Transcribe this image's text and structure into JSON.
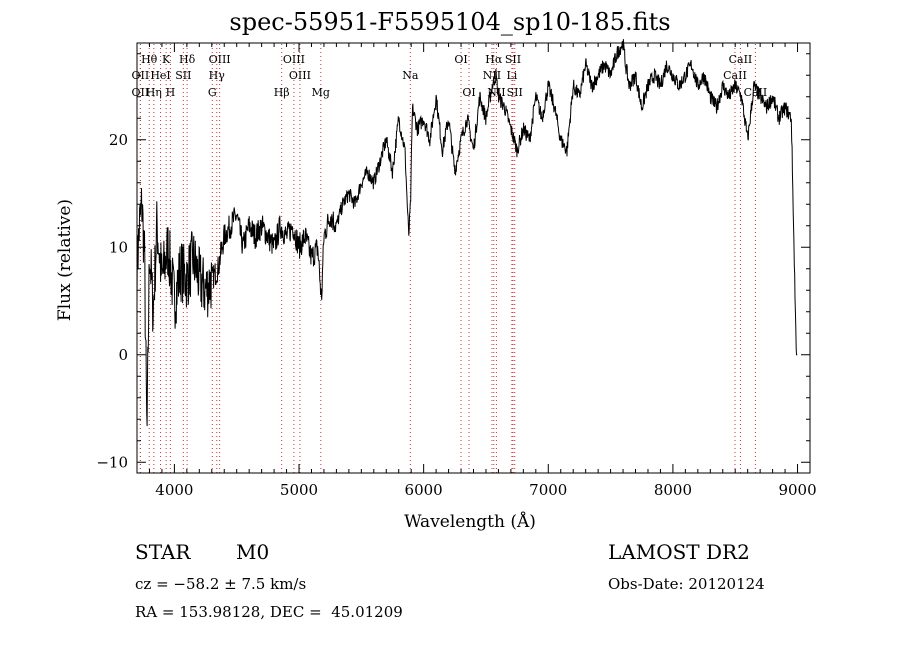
{
  "header": {
    "title": "spec-55951-F5595104_sp10-185.fits"
  },
  "info": {
    "star_label": "STAR",
    "subclass": "M0",
    "survey": "LAMOST DR2",
    "cz": "cz = −58.2 ± 7.5 km/s",
    "obs_date": "Obs-Date: 20120124",
    "radec": "RA = 153.98128, DEC =  45.01209"
  },
  "chart_data": {
    "type": "line",
    "title": "spec-55951-F5595104_sp10-185.fits",
    "xlabel": "Wavelength (Å)",
    "ylabel": "Flux (relative)",
    "xlim": [
      3700,
      9100
    ],
    "ylim": [
      -11,
      29
    ],
    "x_ticks": [
      4000,
      5000,
      6000,
      7000,
      8000,
      9000
    ],
    "y_ticks": [
      -10,
      0,
      10,
      20
    ],
    "grid": false,
    "line_color": "#000000",
    "marker_color": "#cc3333",
    "spectrum": {
      "name": "",
      "x": [
        3700,
        3720,
        3740,
        3760,
        3780,
        3800,
        3830,
        3860,
        3900,
        3950,
        4000,
        4050,
        4100,
        4150,
        4200,
        4250,
        4300,
        4350,
        4400,
        4450,
        4500,
        4550,
        4600,
        4650,
        4700,
        4750,
        4800,
        4850,
        4900,
        4950,
        5000,
        5050,
        5100,
        5150,
        5180,
        5200,
        5250,
        5300,
        5350,
        5400,
        5450,
        5500,
        5550,
        5600,
        5650,
        5700,
        5750,
        5800,
        5850,
        5880,
        5895,
        5910,
        5950,
        6000,
        6050,
        6100,
        6150,
        6200,
        6250,
        6300,
        6350,
        6400,
        6450,
        6500,
        6550,
        6580,
        6600,
        6650,
        6700,
        6750,
        6800,
        6850,
        6900,
        6950,
        7000,
        7050,
        7100,
        7150,
        7200,
        7250,
        7300,
        7350,
        7400,
        7450,
        7500,
        7550,
        7600,
        7620,
        7650,
        7700,
        7750,
        7800,
        7850,
        7900,
        7950,
        8000,
        8050,
        8100,
        8150,
        8200,
        8250,
        8300,
        8350,
        8400,
        8450,
        8500,
        8550,
        8600,
        8650,
        8700,
        8750,
        8800,
        8850,
        8900,
        8950,
        8990,
        9000
      ],
      "y": [
        8,
        12,
        14,
        9,
        -8,
        10,
        4,
        12,
        7,
        10,
        5,
        8,
        7,
        9,
        7,
        6,
        7,
        8,
        11,
        12,
        13,
        10,
        12,
        11,
        12,
        11,
        10,
        12,
        11,
        12,
        10,
        11,
        9,
        10,
        5,
        11,
        13,
        12,
        14,
        15,
        14,
        16,
        17,
        16,
        18,
        20,
        17,
        22,
        19,
        11,
        14,
        23,
        21,
        22,
        20,
        24,
        19,
        22,
        17,
        20,
        22,
        19,
        24,
        22,
        25,
        26,
        24,
        23,
        21,
        19,
        21,
        20,
        24,
        22,
        25,
        23,
        20,
        19,
        25,
        24,
        27,
        25,
        26,
        27,
        26,
        28,
        29,
        27,
        25,
        26,
        23,
        25,
        26,
        25,
        27,
        26,
        25,
        26,
        27,
        25,
        26,
        24,
        23,
        25,
        24,
        25,
        24,
        20,
        25,
        24,
        23,
        24,
        22,
        23,
        22,
        0,
        0
      ]
    },
    "line_markers": [
      {
        "label": "Hθ",
        "x": 3798,
        "row": 1
      },
      {
        "label": "K",
        "x": 3934,
        "row": 1
      },
      {
        "label": "Hδ",
        "x": 4102,
        "row": 1
      },
      {
        "label": "OIII",
        "x": 4363,
        "row": 1
      },
      {
        "label": "OIII",
        "x": 4959,
        "row": 1
      },
      {
        "label": "OI",
        "x": 6300,
        "row": 1
      },
      {
        "label": "Hα",
        "x": 6563,
        "row": 1
      },
      {
        "label": "SII",
        "x": 6717,
        "row": 1
      },
      {
        "label": "CaII",
        "x": 8542,
        "row": 1
      },
      {
        "label": "OII",
        "x": 3727,
        "row": 2
      },
      {
        "label": "HeI",
        "x": 3889,
        "row": 2
      },
      {
        "label": "SII",
        "x": 4072,
        "row": 2
      },
      {
        "label": "Hγ",
        "x": 4340,
        "row": 2
      },
      {
        "label": "OIII",
        "x": 5007,
        "row": 2
      },
      {
        "label": "Na",
        "x": 5893,
        "row": 2
      },
      {
        "label": "NII",
        "x": 6548,
        "row": 2
      },
      {
        "label": "Li",
        "x": 6708,
        "row": 2
      },
      {
        "label": "CaII",
        "x": 8498,
        "row": 2
      },
      {
        "label": "OII",
        "x": 3727,
        "row": 3
      },
      {
        "label": "Hη",
        "x": 3835,
        "row": 3
      },
      {
        "label": "H",
        "x": 3968,
        "row": 3
      },
      {
        "label": "G",
        "x": 4304,
        "row": 3
      },
      {
        "label": "Hβ",
        "x": 4861,
        "row": 3
      },
      {
        "label": "Mg",
        "x": 5175,
        "row": 3
      },
      {
        "label": "OI",
        "x": 6364,
        "row": 3
      },
      {
        "label": "NII",
        "x": 6584,
        "row": 3
      },
      {
        "label": "SII",
        "x": 6731,
        "row": 3
      },
      {
        "label": "CaII",
        "x": 8662,
        "row": 3
      }
    ]
  }
}
